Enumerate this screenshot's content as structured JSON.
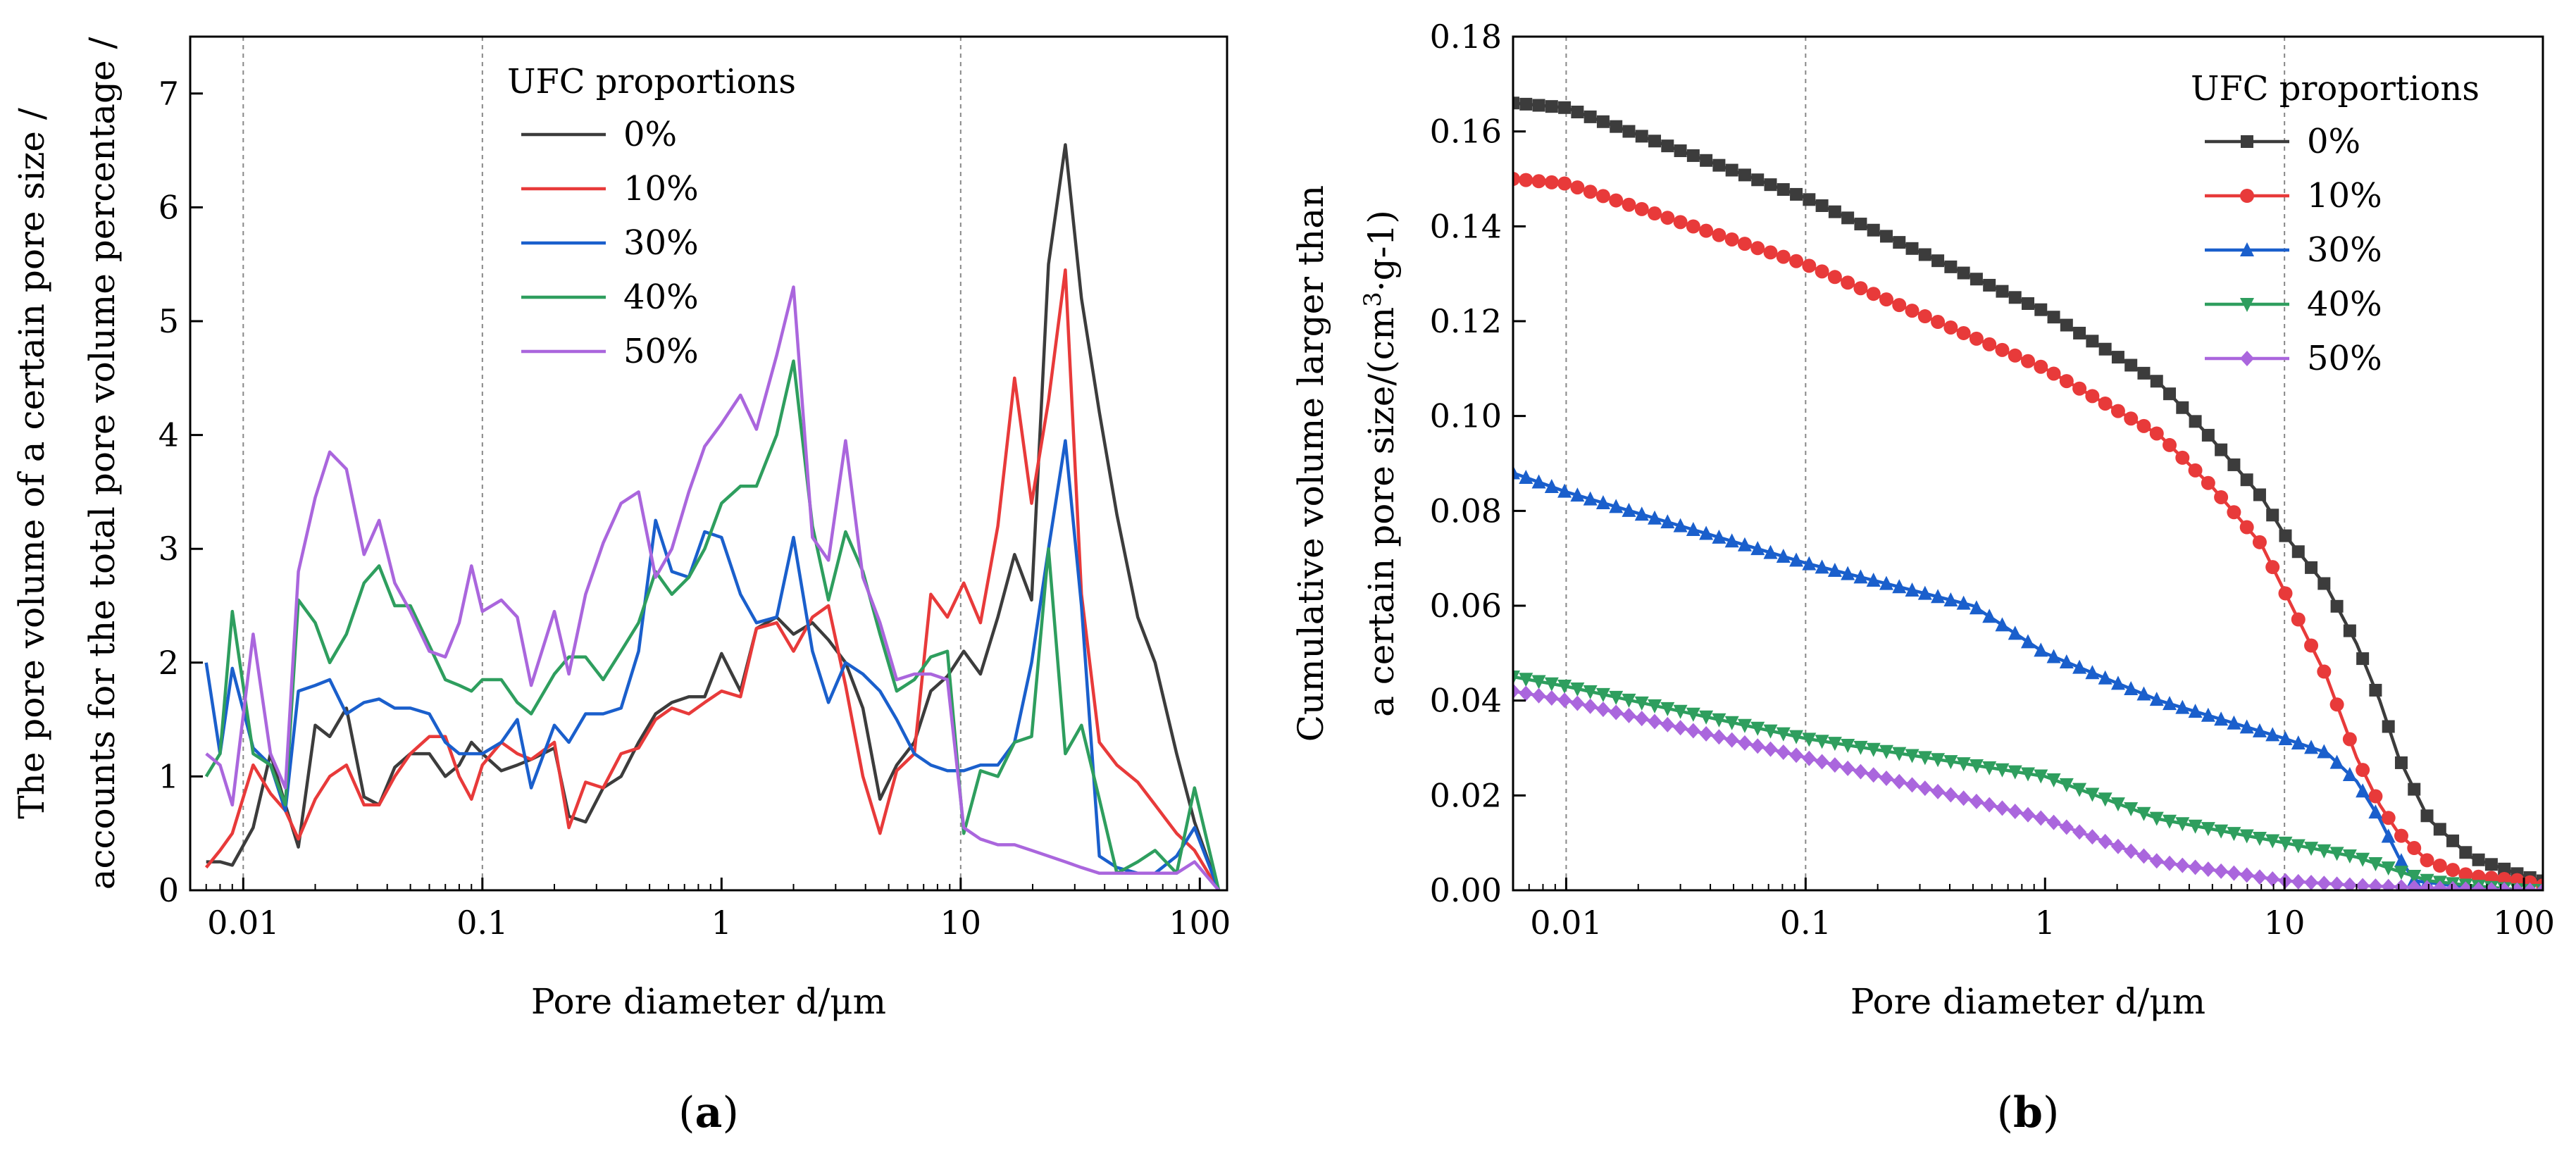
{
  "chart_data": [
    {
      "id": "a",
      "type": "line",
      "panel_label": "(a)",
      "panel_label_letter": "a",
      "xscale": "log",
      "xlim": [
        0.006,
        130
      ],
      "ylim": [
        0,
        7.5
      ],
      "xticks": [
        0.01,
        0.1,
        1,
        10,
        100
      ],
      "xtick_labels": [
        "0.01",
        "0.1",
        "1",
        "10",
        "100"
      ],
      "yticks": [
        0,
        1,
        2,
        3,
        4,
        5,
        6,
        7
      ],
      "ytick_labels": [
        "0",
        "1",
        "2",
        "3",
        "4",
        "5",
        "6",
        "7"
      ],
      "vlines": [
        0.01,
        0.1,
        10
      ],
      "xlabel": "Pore diameter d/μm",
      "ylabel_lines": [
        "The pore volume of a certain pore size /",
        "accounts for the total pore volume percentage /"
      ],
      "legend_title": "UFC proportions",
      "legend_position": "top-center",
      "series": [
        {
          "name": "0%",
          "color": "#3c3c3c",
          "x": [
            0.007,
            0.008,
            0.009,
            0.011,
            0.013,
            0.015,
            0.017,
            0.02,
            0.023,
            0.027,
            0.032,
            0.037,
            0.043,
            0.05,
            0.06,
            0.07,
            0.08,
            0.09,
            0.1,
            0.12,
            0.14,
            0.16,
            0.2,
            0.23,
            0.27,
            0.32,
            0.38,
            0.45,
            0.53,
            0.62,
            0.73,
            0.85,
            1.0,
            1.2,
            1.4,
            1.7,
            2.0,
            2.4,
            2.8,
            3.3,
            3.9,
            4.6,
            5.4,
            6.4,
            7.5,
            8.8,
            10.3,
            12.1,
            14.3,
            16.8,
            19.8,
            23.3,
            27.4,
            32,
            38,
            45,
            55,
            65,
            80,
            95,
            120
          ],
          "y": [
            0.25,
            0.25,
            0.22,
            0.55,
            1.2,
            0.75,
            0.38,
            1.45,
            1.35,
            1.6,
            0.82,
            0.75,
            1.08,
            1.2,
            1.2,
            1.0,
            1.1,
            1.3,
            1.2,
            1.05,
            1.1,
            1.15,
            1.25,
            0.65,
            0.6,
            0.9,
            1.0,
            1.3,
            1.55,
            1.65,
            1.7,
            1.7,
            2.08,
            1.75,
            2.3,
            2.4,
            2.25,
            2.35,
            2.2,
            2.0,
            1.6,
            0.8,
            1.1,
            1.3,
            1.75,
            1.88,
            2.1,
            1.9,
            2.4,
            2.95,
            2.55,
            5.5,
            6.55,
            5.2,
            4.2,
            3.3,
            2.4,
            2.0,
            1.2,
            0.6,
            0.0
          ]
        },
        {
          "name": "10%",
          "color": "#e83a3a",
          "x": [
            0.007,
            0.008,
            0.009,
            0.011,
            0.013,
            0.015,
            0.017,
            0.02,
            0.023,
            0.027,
            0.032,
            0.037,
            0.043,
            0.05,
            0.06,
            0.07,
            0.08,
            0.09,
            0.1,
            0.12,
            0.14,
            0.16,
            0.2,
            0.23,
            0.27,
            0.32,
            0.38,
            0.45,
            0.53,
            0.62,
            0.73,
            0.85,
            1.0,
            1.2,
            1.4,
            1.7,
            2.0,
            2.4,
            2.8,
            3.3,
            3.9,
            4.6,
            5.4,
            6.4,
            7.5,
            8.8,
            10.3,
            12.1,
            14.3,
            16.8,
            19.8,
            23.3,
            27.4,
            32,
            38,
            45,
            55,
            65,
            80,
            95,
            120
          ],
          "y": [
            0.2,
            0.35,
            0.5,
            1.1,
            0.85,
            0.7,
            0.45,
            0.8,
            1.0,
            1.1,
            0.75,
            0.75,
            1.0,
            1.2,
            1.35,
            1.35,
            1.0,
            0.8,
            1.1,
            1.3,
            1.2,
            1.15,
            1.3,
            0.55,
            0.95,
            0.9,
            1.2,
            1.25,
            1.5,
            1.6,
            1.55,
            1.65,
            1.75,
            1.7,
            2.3,
            2.35,
            2.1,
            2.4,
            2.5,
            1.8,
            1.0,
            0.5,
            1.05,
            1.2,
            2.6,
            2.4,
            2.7,
            2.35,
            3.2,
            4.5,
            3.4,
            4.3,
            5.45,
            2.6,
            1.3,
            1.1,
            0.95,
            0.75,
            0.5,
            0.35,
            0.0
          ]
        },
        {
          "name": "30%",
          "color": "#1a5fcc",
          "x": [
            0.007,
            0.008,
            0.009,
            0.011,
            0.013,
            0.015,
            0.017,
            0.02,
            0.023,
            0.027,
            0.032,
            0.037,
            0.043,
            0.05,
            0.06,
            0.07,
            0.08,
            0.09,
            0.1,
            0.12,
            0.14,
            0.16,
            0.2,
            0.23,
            0.27,
            0.32,
            0.38,
            0.45,
            0.53,
            0.62,
            0.73,
            0.85,
            1.0,
            1.2,
            1.4,
            1.7,
            2.0,
            2.4,
            2.8,
            3.3,
            3.9,
            4.6,
            5.4,
            6.4,
            7.5,
            8.8,
            10.3,
            12.1,
            14.3,
            16.8,
            19.8,
            23.3,
            27.4,
            32,
            38,
            45,
            55,
            65,
            80,
            95,
            120
          ],
          "y": [
            2.0,
            1.2,
            1.95,
            1.25,
            1.1,
            0.7,
            1.75,
            1.8,
            1.85,
            1.55,
            1.65,
            1.68,
            1.6,
            1.6,
            1.55,
            1.3,
            1.2,
            1.2,
            1.2,
            1.3,
            1.5,
            0.9,
            1.45,
            1.3,
            1.55,
            1.55,
            1.6,
            2.1,
            3.25,
            2.8,
            2.75,
            3.15,
            3.1,
            2.6,
            2.35,
            2.4,
            3.1,
            2.1,
            1.65,
            2.0,
            1.9,
            1.75,
            1.5,
            1.2,
            1.1,
            1.05,
            1.05,
            1.1,
            1.1,
            1.3,
            2.0,
            3.0,
            3.95,
            2.5,
            0.3,
            0.2,
            0.15,
            0.15,
            0.3,
            0.55,
            0.0
          ]
        },
        {
          "name": "40%",
          "color": "#2e9e5e",
          "x": [
            0.007,
            0.008,
            0.009,
            0.011,
            0.013,
            0.015,
            0.017,
            0.02,
            0.023,
            0.027,
            0.032,
            0.037,
            0.043,
            0.05,
            0.06,
            0.07,
            0.08,
            0.09,
            0.1,
            0.12,
            0.14,
            0.16,
            0.2,
            0.23,
            0.27,
            0.32,
            0.38,
            0.45,
            0.53,
            0.62,
            0.73,
            0.85,
            1.0,
            1.2,
            1.4,
            1.7,
            2.0,
            2.4,
            2.8,
            3.3,
            3.9,
            4.6,
            5.4,
            6.4,
            7.5,
            8.8,
            10.3,
            12.1,
            14.3,
            16.8,
            19.8,
            23.3,
            27.4,
            32,
            38,
            45,
            55,
            65,
            80,
            95,
            120
          ],
          "y": [
            1.0,
            1.2,
            2.45,
            1.2,
            1.1,
            0.75,
            2.55,
            2.35,
            2.0,
            2.25,
            2.7,
            2.85,
            2.5,
            2.5,
            2.15,
            1.85,
            1.8,
            1.75,
            1.85,
            1.85,
            1.65,
            1.55,
            1.9,
            2.05,
            2.05,
            1.85,
            2.1,
            2.35,
            2.8,
            2.6,
            2.75,
            3.0,
            3.4,
            3.55,
            3.55,
            4.0,
            4.65,
            3.2,
            2.55,
            3.15,
            2.8,
            2.25,
            1.75,
            1.85,
            2.05,
            2.1,
            0.5,
            1.05,
            1.0,
            1.3,
            1.35,
            3.0,
            1.2,
            1.45,
            0.8,
            0.15,
            0.25,
            0.35,
            0.15,
            0.9,
            0.0
          ]
        },
        {
          "name": "50%",
          "color": "#aa66dd",
          "x": [
            0.007,
            0.008,
            0.009,
            0.011,
            0.013,
            0.015,
            0.017,
            0.02,
            0.023,
            0.027,
            0.032,
            0.037,
            0.043,
            0.05,
            0.06,
            0.07,
            0.08,
            0.09,
            0.1,
            0.12,
            0.14,
            0.16,
            0.2,
            0.23,
            0.27,
            0.32,
            0.38,
            0.45,
            0.53,
            0.62,
            0.73,
            0.85,
            1.0,
            1.2,
            1.4,
            1.7,
            2.0,
            2.4,
            2.8,
            3.3,
            3.9,
            4.6,
            5.4,
            6.4,
            7.5,
            8.8,
            10.3,
            12.1,
            14.3,
            16.8,
            19.8,
            23.3,
            27.4,
            32,
            38,
            45,
            55,
            65,
            80,
            95,
            120
          ],
          "y": [
            1.2,
            1.1,
            0.75,
            2.25,
            1.2,
            0.9,
            2.8,
            3.45,
            3.85,
            3.7,
            2.95,
            3.25,
            2.7,
            2.45,
            2.1,
            2.05,
            2.35,
            2.85,
            2.45,
            2.55,
            2.4,
            1.8,
            2.45,
            1.9,
            2.6,
            3.05,
            3.4,
            3.5,
            2.75,
            3.0,
            3.5,
            3.9,
            4.1,
            4.35,
            4.05,
            4.7,
            5.3,
            3.1,
            2.9,
            3.95,
            2.75,
            2.35,
            1.85,
            1.9,
            1.9,
            1.85,
            0.55,
            0.45,
            0.4,
            0.4,
            0.35,
            0.3,
            0.25,
            0.2,
            0.15,
            0.15,
            0.15,
            0.15,
            0.15,
            0.25,
            0.0
          ]
        }
      ]
    },
    {
      "id": "b",
      "type": "line",
      "panel_label": "(b)",
      "panel_label_letter": "b",
      "xscale": "log",
      "xlim": [
        0.006,
        120
      ],
      "ylim": [
        0,
        0.18
      ],
      "xticks": [
        0.01,
        0.1,
        1,
        10,
        100
      ],
      "xtick_labels": [
        "0.01",
        "0.1",
        "1",
        "10",
        "100"
      ],
      "yticks": [
        0,
        0.02,
        0.04,
        0.06,
        0.08,
        0.1,
        0.12,
        0.14,
        0.16,
        0.18
      ],
      "ytick_labels": [
        "0.00",
        "0.02",
        "0.04",
        "0.06",
        "0.08",
        "0.10",
        "0.12",
        "0.14",
        "0.16",
        "0.18"
      ],
      "vlines": [
        0.01,
        0.1,
        10
      ],
      "xlabel": "Pore diameter d/μm",
      "ylabel_lines": [
        "Cumulative volume larger than",
        "a certain pore size/(cm",
        "3",
        "·g-1)"
      ],
      "legend_title": "UFC proportions",
      "legend_position": "top-right",
      "series": [
        {
          "name": "0%",
          "color": "#3c3c3c",
          "marker": "square",
          "x": [
            0.006,
            0.01,
            0.1,
            1,
            3,
            5,
            8,
            10,
            15,
            20,
            25,
            30,
            40,
            60,
            100,
            120
          ],
          "y": [
            0.166,
            0.165,
            0.146,
            0.122,
            0.107,
            0.095,
            0.083,
            0.075,
            0.064,
            0.052,
            0.04,
            0.028,
            0.015,
            0.007,
            0.003,
            0.002
          ]
        },
        {
          "name": "10%",
          "color": "#e83a3a",
          "marker": "circle",
          "x": [
            0.006,
            0.01,
            0.1,
            1,
            3,
            5,
            8,
            10,
            15,
            20,
            25,
            30,
            40,
            60,
            100,
            120
          ],
          "y": [
            0.15,
            0.149,
            0.132,
            0.11,
            0.096,
            0.085,
            0.073,
            0.063,
            0.045,
            0.028,
            0.018,
            0.012,
            0.006,
            0.003,
            0.002,
            0.001
          ]
        },
        {
          "name": "30%",
          "color": "#1a5fcc",
          "marker": "triangle-up",
          "x": [
            0.006,
            0.01,
            0.1,
            0.5,
            1,
            3,
            10,
            15,
            20,
            25,
            30,
            35,
            50,
            100,
            120
          ],
          "y": [
            0.088,
            0.084,
            0.069,
            0.06,
            0.05,
            0.04,
            0.032,
            0.029,
            0.023,
            0.015,
            0.007,
            0.002,
            0.001,
            0.0,
            0.0
          ]
        },
        {
          "name": "40%",
          "color": "#2e9e5e",
          "marker": "triangle-down",
          "x": [
            0.006,
            0.01,
            0.1,
            1,
            3,
            10,
            20,
            30,
            40,
            60,
            100,
            120
          ],
          "y": [
            0.045,
            0.043,
            0.032,
            0.024,
            0.015,
            0.01,
            0.007,
            0.004,
            0.002,
            0.001,
            0.0,
            0.0
          ]
        },
        {
          "name": "50%",
          "color": "#aa66dd",
          "marker": "diamond",
          "x": [
            0.006,
            0.01,
            0.1,
            1,
            3,
            10,
            20,
            40,
            60,
            100,
            120
          ],
          "y": [
            0.042,
            0.04,
            0.028,
            0.015,
            0.006,
            0.002,
            0.001,
            0.0005,
            0.0002,
            0.0,
            0.0
          ]
        }
      ]
    }
  ]
}
